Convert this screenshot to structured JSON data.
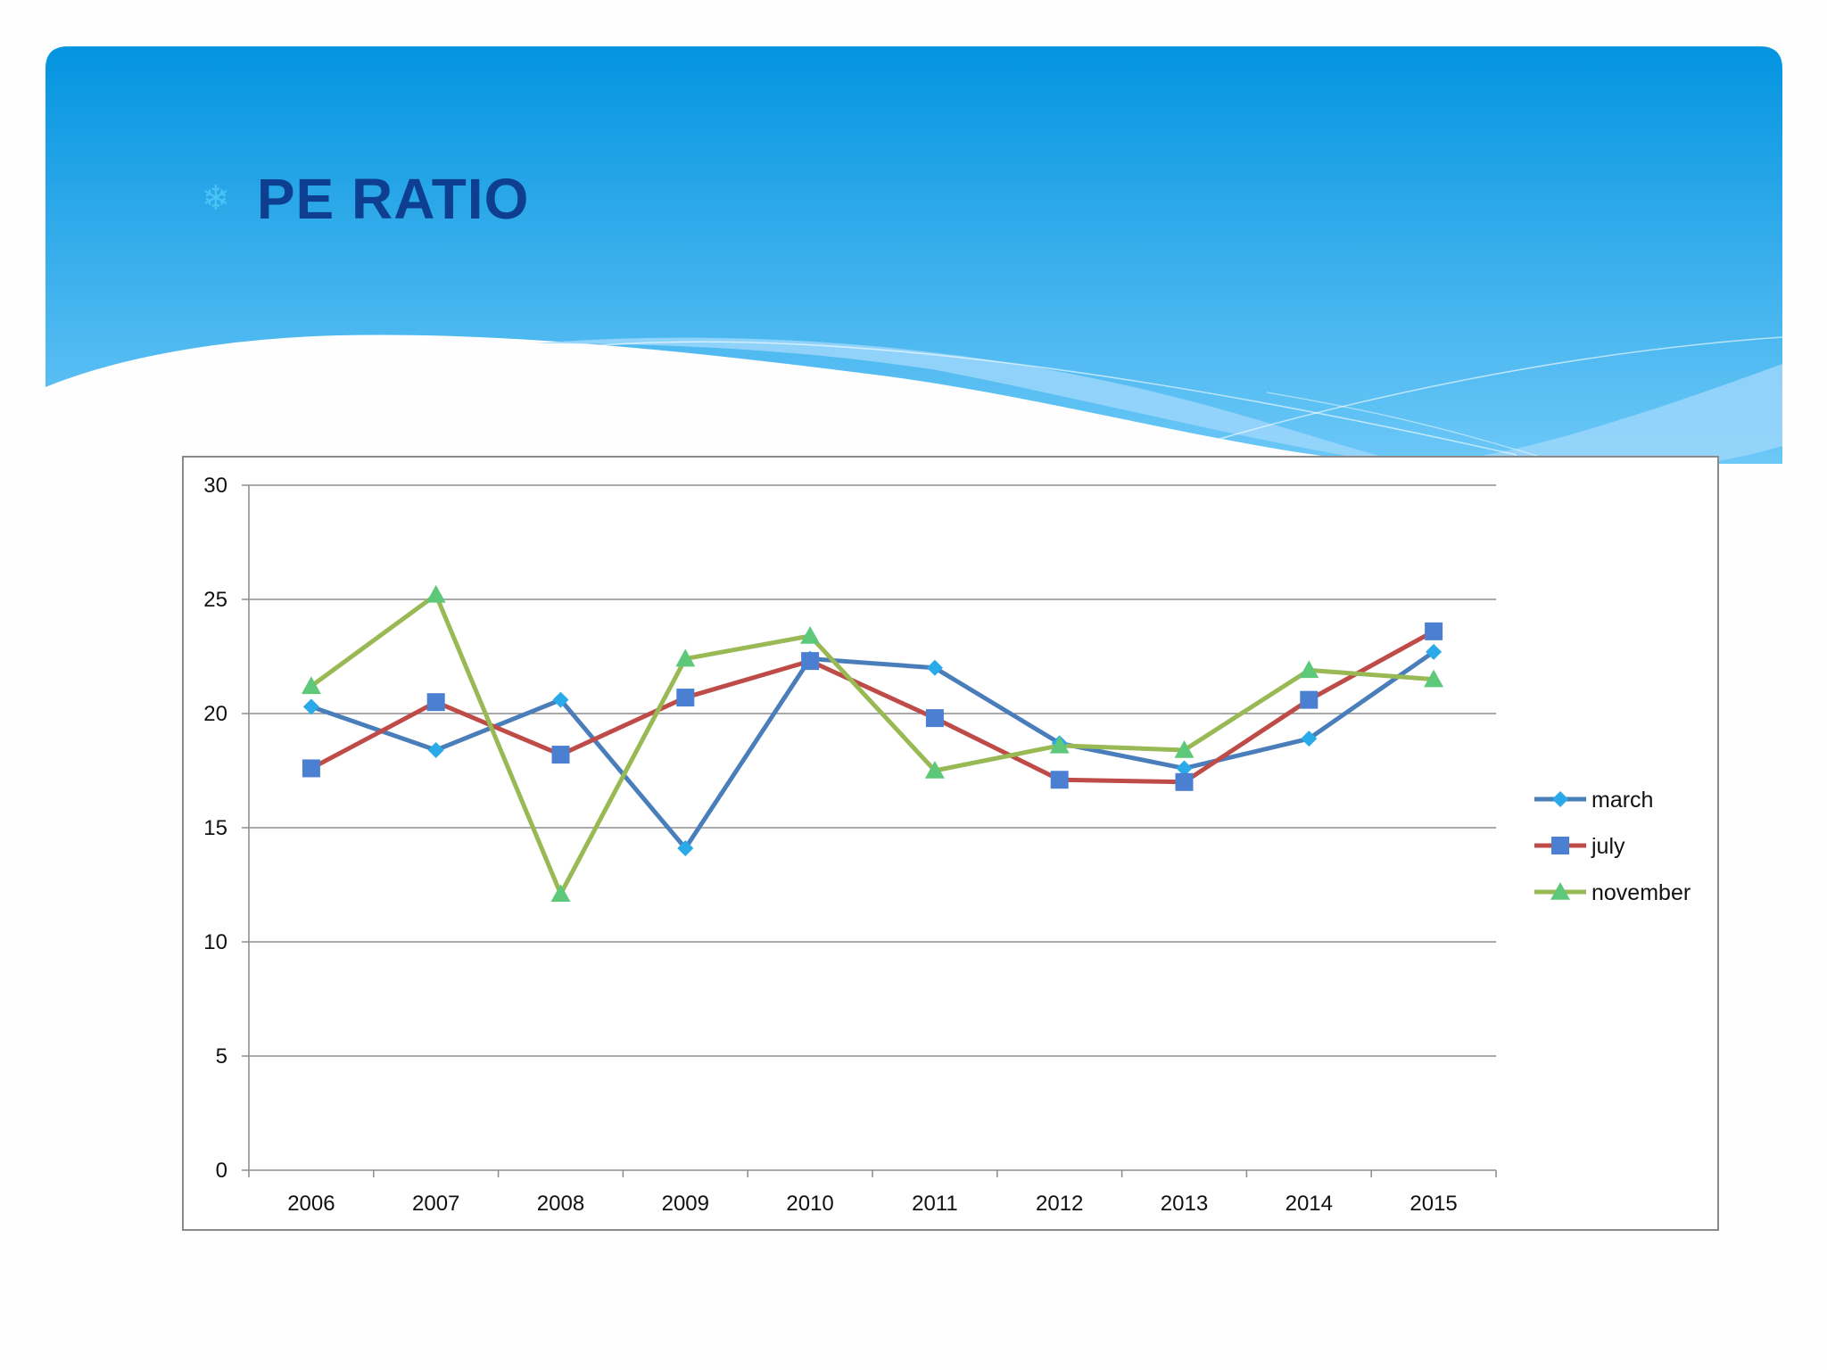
{
  "slide": {
    "title": "PE RATIO",
    "bullet_icon": "snowflake-bullet"
  },
  "colors": {
    "banner_top": "#0394e0",
    "banner_bottom": "#6cc8f7",
    "title": "#0d3e8f",
    "bullet": "#4cc3f5",
    "grid": "#8c8c8c"
  },
  "chart_data": {
    "type": "line",
    "title": "",
    "xlabel": "",
    "ylabel": "",
    "categories": [
      "2006",
      "2007",
      "2008",
      "2009",
      "2010",
      "2011",
      "2012",
      "2013",
      "2014",
      "2015"
    ],
    "ylim": [
      0,
      30
    ],
    "yticks": [
      "0",
      "5",
      "10",
      "15",
      "20",
      "25",
      "30"
    ],
    "grid": true,
    "legend_position": "right",
    "series": [
      {
        "name": "march",
        "marker": "diamond",
        "line_color": "#4a7ebb",
        "marker_color": "#2aaae8",
        "values": [
          20.3,
          18.4,
          20.6,
          14.1,
          22.4,
          22.0,
          18.7,
          17.6,
          18.9,
          22.7
        ]
      },
      {
        "name": "july",
        "marker": "square",
        "line_color": "#be4b48",
        "marker_color": "#4a7fd1",
        "values": [
          17.6,
          20.5,
          18.2,
          20.7,
          22.3,
          19.8,
          17.1,
          17.0,
          20.6,
          23.6
        ]
      },
      {
        "name": "november",
        "marker": "triangle",
        "line_color": "#98b954",
        "marker_color": "#5ec87a",
        "values": [
          21.2,
          25.2,
          12.1,
          22.4,
          23.4,
          17.5,
          18.6,
          18.4,
          21.9,
          21.5
        ]
      }
    ]
  }
}
